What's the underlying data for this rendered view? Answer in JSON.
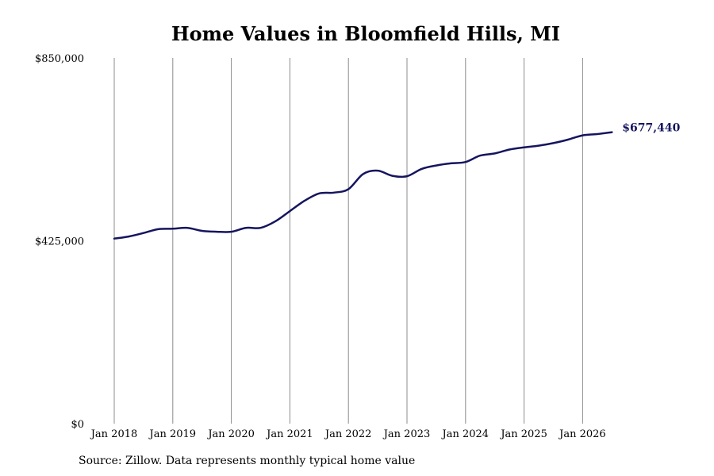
{
  "chart_data": {
    "type": "line",
    "title": "Home Values in Bloomfield Hills, MI",
    "xlabel": "",
    "ylabel": "",
    "ylim": [
      0,
      850000
    ],
    "y_ticks": [
      0,
      425000,
      850000
    ],
    "y_tick_labels": [
      "$0",
      "$425,000",
      "$850,000"
    ],
    "x_range": [
      "2018-01",
      "2026-07"
    ],
    "x_ticks": [
      "2018-01",
      "2019-01",
      "2020-01",
      "2021-01",
      "2022-01",
      "2023-01",
      "2024-01",
      "2025-01",
      "2026-01"
    ],
    "x_tick_labels": [
      "Jan 2018",
      "Jan 2019",
      "Jan 2020",
      "Jan 2021",
      "Jan 2022",
      "Jan 2023",
      "Jan 2024",
      "Jan 2025",
      "Jan 2026"
    ],
    "grid": "vertical",
    "series": [
      {
        "color": "#15155e",
        "points": [
          [
            "2018-01",
            430000
          ],
          [
            "2018-04",
            435000
          ],
          [
            "2018-07",
            443000
          ],
          [
            "2018-10",
            452000
          ],
          [
            "2019-01",
            453000
          ],
          [
            "2019-04",
            455000
          ],
          [
            "2019-07",
            448000
          ],
          [
            "2019-10",
            446000
          ],
          [
            "2020-01",
            446000
          ],
          [
            "2020-04",
            455000
          ],
          [
            "2020-07",
            455000
          ],
          [
            "2020-10",
            470000
          ],
          [
            "2021-01",
            494000
          ],
          [
            "2021-04",
            518000
          ],
          [
            "2021-07",
            535000
          ],
          [
            "2021-10",
            537000
          ],
          [
            "2022-01",
            545000
          ],
          [
            "2022-04",
            580000
          ],
          [
            "2022-07",
            588000
          ],
          [
            "2022-10",
            576000
          ],
          [
            "2023-01",
            575000
          ],
          [
            "2023-04",
            592000
          ],
          [
            "2023-07",
            600000
          ],
          [
            "2023-10",
            605000
          ],
          [
            "2024-01",
            608000
          ],
          [
            "2024-04",
            623000
          ],
          [
            "2024-07",
            628000
          ],
          [
            "2024-10",
            637000
          ],
          [
            "2025-01",
            642000
          ],
          [
            "2025-04",
            646000
          ],
          [
            "2025-07",
            652000
          ],
          [
            "2025-10",
            660000
          ],
          [
            "2026-01",
            670000
          ],
          [
            "2026-04",
            673000
          ],
          [
            "2026-07",
            677440
          ]
        ]
      }
    ],
    "end_label": "$677,440"
  },
  "footer": {
    "source": "Source: Zillow. Data represents monthly typical home value"
  },
  "colors": {
    "line": "#15155e",
    "end_label": "#15155e",
    "grid": "#8c8c8c"
  }
}
